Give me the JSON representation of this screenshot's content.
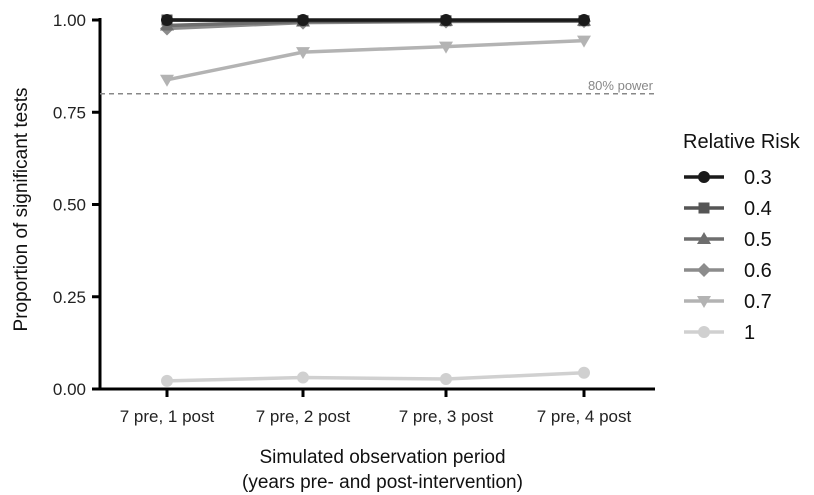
{
  "chart_data": {
    "type": "line",
    "xlabel_line1": "Simulated observation period",
    "xlabel_line2": "(years pre- and post-intervention)",
    "ylabel": "Proportion of significant tests",
    "categories": [
      "7 pre, 1 post",
      "7 pre, 2 post",
      "7 pre, 3 post",
      "7 pre, 4 post"
    ],
    "ylim": [
      0,
      1
    ],
    "yticks": [
      "0.00",
      "0.25",
      "0.50",
      "0.75",
      "1.00"
    ],
    "ytick_values": [
      0,
      0.25,
      0.5,
      0.75,
      1.0
    ],
    "reference_line": {
      "value": 0.8,
      "label": "80% power",
      "color": "#888888"
    },
    "legend": {
      "title": "Relative Risk",
      "placement": "right"
    },
    "series": [
      {
        "name": "0.3",
        "marker": "circle",
        "color": "#1a1a1a",
        "values": [
          1.0,
          1.0,
          1.0,
          1.0
        ]
      },
      {
        "name": "0.4",
        "marker": "square",
        "color": "#555555",
        "values": [
          1.0,
          0.998,
          0.998,
          0.998
        ]
      },
      {
        "name": "0.5",
        "marker": "triangle-up",
        "color": "#6e6e6e",
        "values": [
          0.985,
          0.996,
          0.998,
          0.998
        ]
      },
      {
        "name": "0.6",
        "marker": "diamond",
        "color": "#8c8c8c",
        "values": [
          0.977,
          0.993,
          0.996,
          0.997
        ]
      },
      {
        "name": "0.7",
        "marker": "triangle-down",
        "color": "#b3b3b3",
        "values": [
          0.838,
          0.913,
          0.928,
          0.944
        ]
      },
      {
        "name": "1",
        "marker": "circle",
        "color": "#d0d0d0",
        "values": [
          0.022,
          0.031,
          0.027,
          0.044
        ]
      }
    ]
  }
}
